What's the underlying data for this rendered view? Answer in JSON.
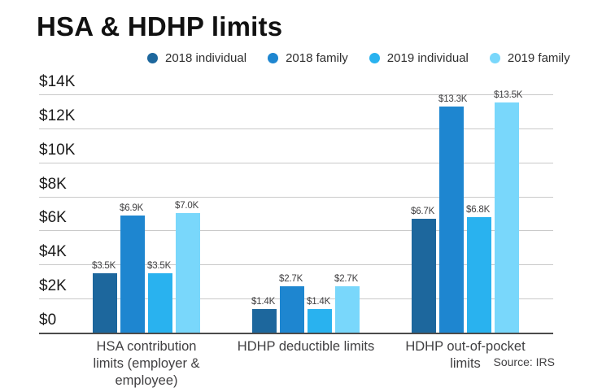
{
  "title": "HSA & HDHP limits",
  "source": "Source: IRS",
  "colors": {
    "gridline": "#c9c9c9",
    "axis_line": "#4b4b4b",
    "title_text": "#111111",
    "tick_text": "#1a1a1a",
    "label_text": "#414042"
  },
  "chart_data": {
    "type": "bar",
    "title": "HSA & HDHP limits",
    "source": "Source: IRS",
    "grid": true,
    "legend_position": "top",
    "ylim": [
      0,
      14000
    ],
    "y_ticks": [
      {
        "label": "$14K",
        "value": 14000
      },
      {
        "label": "$12K",
        "value": 12000
      },
      {
        "label": "$10K",
        "value": 10000
      },
      {
        "label": "$8K",
        "value": 8000
      },
      {
        "label": "$6K",
        "value": 6000
      },
      {
        "label": "$4K",
        "value": 4000
      },
      {
        "label": "$2K",
        "value": 2000
      },
      {
        "label": "$0",
        "value": 0
      }
    ],
    "categories": [
      "HSA contribution limits (employer & employee)",
      "HDHP deductible limits",
      "HDHP out-of-pocket limits"
    ],
    "category_label_lines": [
      [
        "HSA contribution",
        "limits (employer &",
        "employee)"
      ],
      [
        "HDHP deductible limits"
      ],
      [
        "HDHP out-of-pocket",
        "limits"
      ]
    ],
    "series": [
      {
        "name": "2018 individual",
        "color": "#1d679d",
        "values": [
          3500,
          1400,
          6700
        ],
        "value_labels": [
          "$3.5K",
          "$1.4K",
          "$6.7K"
        ]
      },
      {
        "name": "2018 family",
        "color": "#1e86d0",
        "values": [
          6900,
          2700,
          13300
        ],
        "value_labels": [
          "$6.9K",
          "$2.7K",
          "$13.3K"
        ]
      },
      {
        "name": "2019 individual",
        "color": "#29b2ef",
        "values": [
          3500,
          1400,
          6800
        ],
        "value_labels": [
          "$3.5K",
          "$1.4K",
          "$6.8K"
        ]
      },
      {
        "name": "2019 family",
        "color": "#79d7fb",
        "values": [
          7000,
          2700,
          13500
        ],
        "value_labels": [
          "$7.0K",
          "$2.7K",
          "$13.5K"
        ]
      }
    ]
  }
}
